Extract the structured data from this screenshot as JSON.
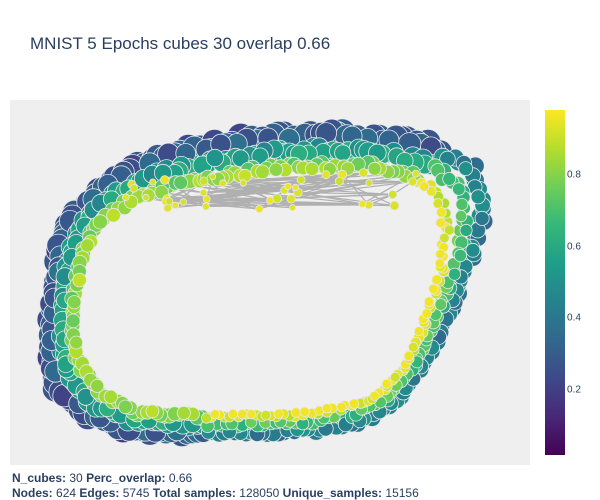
{
  "title": "MNIST 5 Epochs cubes 30 overlap 0.66",
  "colorbar": {
    "ticks": [
      "0.8",
      "0.6",
      "0.4",
      "0.2"
    ],
    "tick_values": [
      0.8,
      0.6,
      0.4,
      0.2
    ],
    "range": [
      0.02,
      0.98
    ],
    "colorscale": [
      "#440154",
      "#482878",
      "#3e4989",
      "#31688e",
      "#26828e",
      "#1f9e89",
      "#35b779",
      "#6ece58",
      "#b5de2b",
      "#fde725"
    ]
  },
  "footer": {
    "line1": [
      {
        "label": "N_cubes:",
        "value": "30"
      },
      {
        "label": "Perc_overlap:",
        "value": "0.66"
      }
    ],
    "line2": [
      {
        "label": "Nodes:",
        "value": "624"
      },
      {
        "label": "Edges:",
        "value": "5745"
      },
      {
        "label": "Total samples:",
        "value": "128050"
      },
      {
        "label": "Unique_samples:",
        "value": "15156"
      }
    ]
  },
  "chart_data": {
    "type": "scatter",
    "title": "MNIST 5 Epochs cubes 30 overlap 0.66",
    "xlabel": "",
    "ylabel": "",
    "description_of_marks": "mapper graph: nodes colored by value (viridis), edges in grey",
    "node_count": 624,
    "edge_count": 5745,
    "color_range": [
      0.02,
      0.98
    ],
    "edge_color": "#b0b0b0",
    "legend": "colorbar right"
  }
}
